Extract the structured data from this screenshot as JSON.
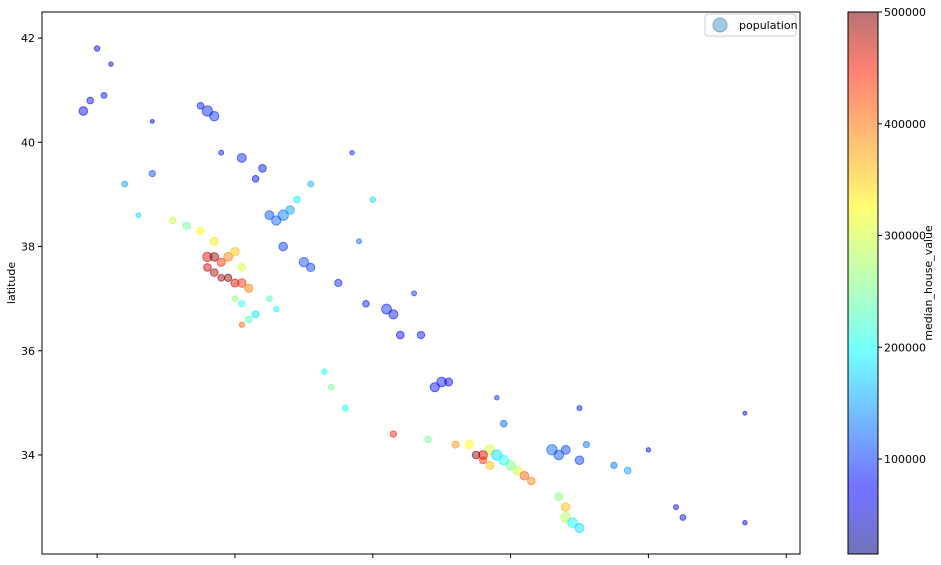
{
  "chart_data": {
    "type": "scatter",
    "ylabel": "latitude",
    "xlabel": "",
    "ylim": [
      32.1,
      42.5
    ],
    "xlim": [
      -124.8,
      -113.8
    ],
    "yticks": [
      34,
      36,
      38,
      40,
      42
    ],
    "ytick_labels": [
      "34",
      "36",
      "38",
      "40",
      "42"
    ],
    "xticks": [
      -124,
      -122,
      -120,
      -118,
      -116,
      -114
    ],
    "xtick_labels": [
      "",
      "",
      "",
      "",
      "",
      ""
    ],
    "legend": {
      "label": "population",
      "position": "top-right",
      "color": "#1f77b4"
    },
    "colorbar": {
      "label": "median_house_value",
      "min": 14999,
      "max": 500001,
      "ticks": [
        100000,
        200000,
        300000,
        400000,
        500000
      ],
      "tick_labels": [
        "100000",
        "200000",
        "300000",
        "400000",
        "500000"
      ],
      "colormap": "jet"
    },
    "points": [
      [
        -124.1,
        40.8,
        80000,
        900
      ],
      [
        -124.2,
        40.6,
        75000,
        1500
      ],
      [
        -123.9,
        40.9,
        85000,
        700
      ],
      [
        -124.0,
        41.8,
        70000,
        600
      ],
      [
        -123.8,
        41.5,
        65000,
        400
      ],
      [
        -123.2,
        40.4,
        70000,
        300
      ],
      [
        -122.4,
        40.6,
        90000,
        2200
      ],
      [
        -122.3,
        40.5,
        95000,
        1800
      ],
      [
        -122.5,
        40.7,
        85000,
        900
      ],
      [
        -121.9,
        39.7,
        90000,
        1600
      ],
      [
        -121.6,
        39.5,
        80000,
        1200
      ],
      [
        -121.7,
        39.3,
        75000,
        900
      ],
      [
        -122.2,
        39.8,
        82000,
        500
      ],
      [
        -123.2,
        39.4,
        110000,
        800
      ],
      [
        -123.6,
        39.2,
        150000,
        700
      ],
      [
        -123.4,
        38.6,
        180000,
        500
      ],
      [
        -122.9,
        38.5,
        290000,
        900
      ],
      [
        -122.7,
        38.4,
        250000,
        1100
      ],
      [
        -122.5,
        38.3,
        320000,
        1000
      ],
      [
        -122.3,
        38.1,
        330000,
        1300
      ],
      [
        -122.4,
        37.8,
        450000,
        1800
      ],
      [
        -122.3,
        37.8,
        500001,
        1500
      ],
      [
        -122.2,
        37.7,
        420000,
        1400
      ],
      [
        -122.1,
        37.8,
        380000,
        1600
      ],
      [
        -122.0,
        37.9,
        350000,
        1500
      ],
      [
        -122.4,
        37.6,
        470000,
        1200
      ],
      [
        -122.3,
        37.5,
        480000,
        1200
      ],
      [
        -122.1,
        37.4,
        500001,
        1100
      ],
      [
        -122.0,
        37.3,
        460000,
        1300
      ],
      [
        -121.9,
        37.3,
        420000,
        1500
      ],
      [
        -121.8,
        37.2,
        380000,
        1400
      ],
      [
        -121.9,
        37.6,
        300000,
        1100
      ],
      [
        -122.2,
        37.4,
        490000,
        900
      ],
      [
        -122.0,
        37.0,
        260000,
        700
      ],
      [
        -121.9,
        36.9,
        210000,
        800
      ],
      [
        -121.8,
        36.6,
        230000,
        900
      ],
      [
        -121.7,
        36.7,
        180000,
        1000
      ],
      [
        -121.9,
        36.5,
        390000,
        600
      ],
      [
        -121.5,
        37.0,
        230000,
        700
      ],
      [
        -121.3,
        38.6,
        130000,
        2200
      ],
      [
        -121.4,
        38.5,
        120000,
        1800
      ],
      [
        -121.2,
        38.7,
        150000,
        1500
      ],
      [
        -121.5,
        38.6,
        110000,
        1600
      ],
      [
        -121.1,
        38.9,
        190000,
        900
      ],
      [
        -120.9,
        39.2,
        160000,
        700
      ],
      [
        -121.3,
        38.0,
        100000,
        1500
      ],
      [
        -121.0,
        37.7,
        110000,
        1800
      ],
      [
        -120.9,
        37.6,
        100000,
        1400
      ],
      [
        -120.5,
        37.3,
        90000,
        1100
      ],
      [
        -120.1,
        36.9,
        85000,
        900
      ],
      [
        -119.8,
        36.8,
        90000,
        2000
      ],
      [
        -119.7,
        36.7,
        85000,
        1700
      ],
      [
        -119.6,
        36.3,
        75000,
        1200
      ],
      [
        -119.3,
        36.3,
        80000,
        1100
      ],
      [
        -119.0,
        35.4,
        85000,
        1900
      ],
      [
        -119.1,
        35.3,
        80000,
        1700
      ],
      [
        -118.9,
        35.4,
        75000,
        1300
      ],
      [
        -118.3,
        34.1,
        300000,
        2000
      ],
      [
        -118.4,
        34.0,
        450000,
        1600
      ],
      [
        -118.5,
        34.0,
        500001,
        1200
      ],
      [
        -118.2,
        34.0,
        180000,
        2200
      ],
      [
        -118.1,
        33.9,
        200000,
        1900
      ],
      [
        -118.0,
        33.8,
        250000,
        1800
      ],
      [
        -117.9,
        33.7,
        290000,
        1700
      ],
      [
        -117.8,
        33.6,
        400000,
        1500
      ],
      [
        -117.7,
        33.5,
        380000,
        1200
      ],
      [
        -118.3,
        33.8,
        350000,
        1300
      ],
      [
        -118.4,
        33.9,
        420000,
        1000
      ],
      [
        -118.6,
        34.2,
        320000,
        1400
      ],
      [
        -118.8,
        34.2,
        370000,
        1000
      ],
      [
        -119.2,
        34.3,
        250000,
        900
      ],
      [
        -119.7,
        34.4,
        430000,
        800
      ],
      [
        -120.4,
        34.9,
        200000,
        700
      ],
      [
        -120.6,
        35.3,
        250000,
        700
      ],
      [
        -120.7,
        35.6,
        200000,
        600
      ],
      [
        -117.4,
        34.1,
        120000,
        2200
      ],
      [
        -117.3,
        34.0,
        110000,
        1900
      ],
      [
        -117.2,
        34.1,
        105000,
        1600
      ],
      [
        -117.0,
        33.9,
        100000,
        1500
      ],
      [
        -116.9,
        34.2,
        130000,
        800
      ],
      [
        -117.2,
        32.8,
        280000,
        2000
      ],
      [
        -117.1,
        32.7,
        200000,
        1900
      ],
      [
        -117.0,
        32.6,
        180000,
        1700
      ],
      [
        -117.2,
        33.0,
        350000,
        1500
      ],
      [
        -117.3,
        33.2,
        260000,
        1300
      ],
      [
        -116.3,
        33.7,
        150000,
        900
      ],
      [
        -116.5,
        33.8,
        130000,
        800
      ],
      [
        -115.5,
        32.8,
        80000,
        700
      ],
      [
        -115.6,
        33.0,
        70000,
        500
      ],
      [
        -114.6,
        32.7,
        60000,
        400
      ],
      [
        -114.6,
        34.8,
        60000,
        300
      ],
      [
        -116.0,
        34.1,
        70000,
        400
      ],
      [
        -117.0,
        34.9,
        80000,
        500
      ],
      [
        -118.1,
        34.6,
        120000,
        900
      ],
      [
        -118.2,
        35.1,
        90000,
        400
      ],
      [
        -119.4,
        37.1,
        95000,
        500
      ],
      [
        -120.2,
        38.1,
        120000,
        500
      ],
      [
        -120.0,
        38.9,
        180000,
        600
      ],
      [
        -121.4,
        36.8,
        200000,
        600
      ],
      [
        -120.3,
        39.8,
        90000,
        400
      ]
    ]
  }
}
